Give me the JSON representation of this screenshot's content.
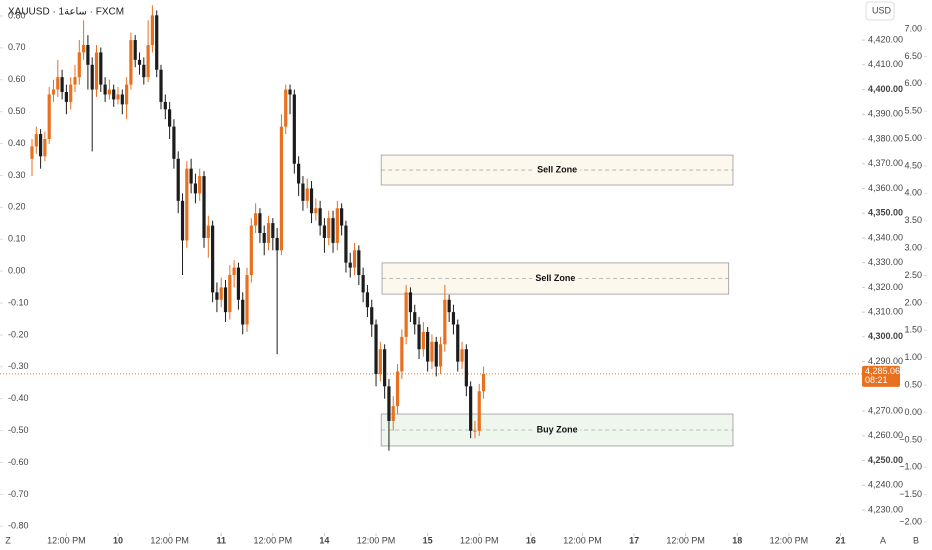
{
  "chart_data": {
    "type": "candlestick",
    "title": "XAUUSD · 1ساعة · FXCM",
    "y_unit": "USD",
    "up_color": "#e8701f",
    "down_color": "#1c1c1c",
    "grid": false,
    "x": [
      0,
      1,
      2,
      3,
      4,
      5,
      6,
      7,
      8,
      9,
      10,
      11,
      12,
      13,
      14,
      15,
      16,
      17,
      18,
      19,
      20,
      21,
      22,
      23,
      24,
      25,
      26,
      27,
      28,
      29,
      30,
      31,
      32,
      33,
      34,
      35,
      36,
      37,
      38,
      39,
      40,
      41,
      42,
      43,
      44,
      45,
      46,
      47,
      48,
      49,
      50,
      51,
      52,
      53,
      54,
      55,
      56,
      57,
      58,
      59,
      60,
      61,
      62,
      63,
      64,
      65,
      66,
      67,
      68,
      69,
      70,
      71,
      72,
      73,
      74,
      75,
      76,
      77,
      78,
      79,
      80,
      81,
      82,
      83,
      84,
      85,
      86,
      87,
      88,
      89,
      90,
      91,
      92,
      93,
      94,
      95,
      96,
      97,
      98,
      99,
      100,
      101,
      102,
      103,
      104,
      105
    ],
    "ohlc": [
      [
        4372,
        4380,
        4365,
        4377
      ],
      [
        4377,
        4385,
        4374,
        4382
      ],
      [
        4382,
        4384,
        4368,
        4373
      ],
      [
        4373,
        4383,
        4371,
        4380
      ],
      [
        4380,
        4401,
        4378,
        4398
      ],
      [
        4398,
        4404,
        4395,
        4400
      ],
      [
        4400,
        4412,
        4397,
        4405
      ],
      [
        4405,
        4408,
        4396,
        4399
      ],
      [
        4399,
        4402,
        4390,
        4395
      ],
      [
        4395,
        4405,
        4392,
        4402
      ],
      [
        4402,
        4410,
        4399,
        4405
      ],
      [
        4405,
        4420,
        4402,
        4415
      ],
      [
        4415,
        4428,
        4412,
        4418
      ],
      [
        4418,
        4422,
        4400,
        4410
      ],
      [
        4410,
        4413,
        4375,
        4400
      ],
      [
        4400,
        4418,
        4397,
        4415
      ],
      [
        4415,
        4417,
        4399,
        4402
      ],
      [
        4402,
        4405,
        4395,
        4398
      ],
      [
        4398,
        4404,
        4396,
        4400
      ],
      [
        4400,
        4402,
        4393,
        4396
      ],
      [
        4396,
        4401,
        4394,
        4398
      ],
      [
        4398,
        4400,
        4390,
        4394
      ],
      [
        4394,
        4405,
        4388,
        4402
      ],
      [
        4402,
        4423,
        4400,
        4420
      ],
      [
        4420,
        4422,
        4409,
        4412
      ],
      [
        4412,
        4415,
        4406,
        4410
      ],
      [
        4410,
        4413,
        4402,
        4405
      ],
      [
        4405,
        4428,
        4403,
        4418
      ],
      [
        4418,
        4434,
        4415,
        4430
      ],
      [
        4430,
        4432,
        4405,
        4408
      ],
      [
        4408,
        4410,
        4392,
        4395
      ],
      [
        4395,
        4398,
        4388,
        4392
      ],
      [
        4392,
        4395,
        4380,
        4385
      ],
      [
        4385,
        4388,
        4368,
        4372
      ],
      [
        4372,
        4375,
        4350,
        4355
      ],
      [
        4355,
        4358,
        4325,
        4339
      ],
      [
        4339,
        4371,
        4336,
        4368
      ],
      [
        4368,
        4372,
        4358,
        4362
      ],
      [
        4362,
        4366,
        4354,
        4358
      ],
      [
        4358,
        4368,
        4355,
        4365
      ],
      [
        4365,
        4367,
        4336,
        4340
      ],
      [
        4340,
        4349,
        4332,
        4345
      ],
      [
        4345,
        4347,
        4314,
        4318
      ],
      [
        4318,
        4322,
        4310,
        4315
      ],
      [
        4315,
        4324,
        4312,
        4320
      ],
      [
        4320,
        4323,
        4306,
        4310
      ],
      [
        4310,
        4329,
        4307,
        4325
      ],
      [
        4325,
        4331,
        4320,
        4328
      ],
      [
        4328,
        4330,
        4311,
        4315
      ],
      [
        4315,
        4318,
        4301,
        4305
      ],
      [
        4305,
        4328,
        4302,
        4325
      ],
      [
        4325,
        4348,
        4322,
        4345
      ],
      [
        4345,
        4354,
        4342,
        4350
      ],
      [
        4350,
        4352,
        4338,
        4342
      ],
      [
        4342,
        4345,
        4333,
        4338
      ],
      [
        4338,
        4349,
        4335,
        4346
      ],
      [
        4346,
        4348,
        4335,
        4340
      ],
      [
        4340,
        4344,
        4293,
        4335
      ],
      [
        4335,
        4390,
        4333,
        4385
      ],
      [
        4385,
        4402,
        4382,
        4400
      ],
      [
        4400,
        4402,
        4390,
        4398
      ],
      [
        4398,
        4400,
        4366,
        4370
      ],
      [
        4370,
        4373,
        4357,
        4362
      ],
      [
        4362,
        4365,
        4351,
        4355
      ],
      [
        4355,
        4364,
        4352,
        4360
      ],
      [
        4360,
        4363,
        4346,
        4350
      ],
      [
        4350,
        4356,
        4347,
        4352
      ],
      [
        4352,
        4355,
        4341,
        4345
      ],
      [
        4345,
        4348,
        4334,
        4340
      ],
      [
        4340,
        4351,
        4337,
        4348
      ],
      [
        4348,
        4351,
        4334,
        4338
      ],
      [
        4338,
        4355,
        4335,
        4352
      ],
      [
        4352,
        4354,
        4341,
        4345
      ],
      [
        4345,
        4347,
        4326,
        4330
      ],
      [
        4330,
        4334,
        4324,
        4328
      ],
      [
        4328,
        4338,
        4325,
        4335
      ],
      [
        4335,
        4337,
        4321,
        4325
      ],
      [
        4325,
        4328,
        4314,
        4318
      ],
      [
        4318,
        4321,
        4308,
        4312
      ],
      [
        4312,
        4315,
        4300,
        4305
      ],
      [
        4305,
        4307,
        4280,
        4285
      ],
      [
        4285,
        4298,
        4282,
        4295
      ],
      [
        4295,
        4297,
        4275,
        4280
      ],
      [
        4280,
        4283,
        4254,
        4266
      ],
      [
        4266,
        4276,
        4262,
        4272
      ],
      [
        4272,
        4289,
        4269,
        4286
      ],
      [
        4286,
        4303,
        4283,
        4300
      ],
      [
        4300,
        4321,
        4297,
        4318
      ],
      [
        4318,
        4320,
        4306,
        4310
      ],
      [
        4310,
        4313,
        4301,
        4305
      ],
      [
        4305,
        4308,
        4291,
        4295
      ],
      [
        4295,
        4306,
        4292,
        4302
      ],
      [
        4302,
        4304,
        4286,
        4290
      ],
      [
        4290,
        4301,
        4287,
        4298
      ],
      [
        4298,
        4300,
        4284,
        4288
      ],
      [
        4288,
        4300,
        4285,
        4297
      ],
      [
        4297,
        4321,
        4294,
        4315
      ],
      [
        4315,
        4317,
        4306,
        4310
      ],
      [
        4310,
        4313,
        4301,
        4305
      ],
      [
        4305,
        4307,
        4286,
        4290
      ],
      [
        4290,
        4298,
        4287,
        4295
      ],
      [
        4295,
        4297,
        4276,
        4280
      ],
      [
        4280,
        4282,
        4259,
        4262
      ],
      [
        4262,
        4266,
        4259,
        4262
      ],
      [
        4262,
        4281,
        4260,
        4278
      ],
      [
        4278,
        4288,
        4275,
        4285.06
      ]
    ],
    "xlim": [
      -7.44,
      193
    ],
    "xticks": [
      {
        "value": 8,
        "label": "12:00 PM"
      },
      {
        "value": 20,
        "label": "10"
      },
      {
        "value": 32,
        "label": "12:00 PM"
      },
      {
        "value": 44,
        "label": "11"
      },
      {
        "value": 56,
        "label": "12:00 PM"
      },
      {
        "value": 68,
        "label": "14"
      },
      {
        "value": 80,
        "label": "12:00 PM"
      },
      {
        "value": 92,
        "label": "15"
      },
      {
        "value": 104,
        "label": "12:00 PM"
      },
      {
        "value": 116,
        "label": "16"
      },
      {
        "value": 128,
        "label": "12:00 PM"
      },
      {
        "value": 140,
        "label": "17"
      },
      {
        "value": 152,
        "label": "12:00 PM"
      },
      {
        "value": 164,
        "label": "18"
      },
      {
        "value": 176,
        "label": "12:00 PM"
      },
      {
        "value": 188,
        "label": "21"
      }
    ],
    "ylim": [
      4220.7,
      4436.2
    ],
    "yticks": [
      {
        "value": 4230,
        "label": "4,230.00"
      },
      {
        "value": 4240,
        "label": "4,240.00"
      },
      {
        "value": 4250,
        "label": "4,250.00"
      },
      {
        "value": 4260,
        "label": "4,260.00"
      },
      {
        "value": 4270,
        "label": "4,270.00"
      },
      {
        "value": 4290,
        "label": "4,290.00"
      },
      {
        "value": 4300,
        "label": "4,300.00"
      },
      {
        "value": 4310,
        "label": "4,310.00"
      },
      {
        "value": 4320,
        "label": "4,320.00"
      },
      {
        "value": 4330,
        "label": "4,330.00"
      },
      {
        "value": 4340,
        "label": "4,340.00"
      },
      {
        "value": 4350,
        "label": "4,350.00"
      },
      {
        "value": 4360,
        "label": "4,360.00"
      },
      {
        "value": 4370,
        "label": "4,370.00"
      },
      {
        "value": 4380,
        "label": "4,380.00"
      },
      {
        "value": 4390,
        "label": "4,390.00"
      },
      {
        "value": 4400,
        "label": "4,400.00"
      },
      {
        "value": 4410,
        "label": "4,410.00"
      },
      {
        "value": 4420,
        "label": "4,420.00"
      }
    ],
    "left_axis": {
      "lim": [
        -0.821,
        0.85
      ],
      "ticks": [
        {
          "value": -0.8,
          "label": "-0.80"
        },
        {
          "value": -0.7,
          "label": "-0.70"
        },
        {
          "value": -0.6,
          "label": "-0.60"
        },
        {
          "value": -0.5,
          "label": "-0.50"
        },
        {
          "value": -0.4,
          "label": "-0.40"
        },
        {
          "value": -0.3,
          "label": "-0.30"
        },
        {
          "value": -0.2,
          "label": "-0.20"
        },
        {
          "value": -0.1,
          "label": "-0.10"
        },
        {
          "value": 0,
          "label": "0.00"
        },
        {
          "value": 0.1,
          "label": "0.10"
        },
        {
          "value": 0.2,
          "label": "0.20"
        },
        {
          "value": 0.3,
          "label": "0.30"
        },
        {
          "value": 0.4,
          "label": "0.40"
        },
        {
          "value": 0.5,
          "label": "0.50"
        },
        {
          "value": 0.6,
          "label": "0.60"
        },
        {
          "value": 0.7,
          "label": "0.70"
        },
        {
          "value": 0.8,
          "label": "0.80"
        }
      ]
    },
    "inner_axis": {
      "lim": [
        -2.2,
        7.53
      ],
      "ticks": [
        {
          "value": -2,
          "label": "−2.00"
        },
        {
          "value": -1.5,
          "label": "−1.50"
        },
        {
          "value": -1,
          "label": "−1.00"
        },
        {
          "value": -0.5,
          "label": "−0.50"
        },
        {
          "value": 0,
          "label": "0.00"
        },
        {
          "value": 0.5,
          "label": "0.50"
        },
        {
          "value": 1,
          "label": "1.00"
        },
        {
          "value": 1.5,
          "label": "1.50"
        },
        {
          "value": 2,
          "label": "2.00"
        },
        {
          "value": 2.5,
          "label": "2.50"
        },
        {
          "value": 3,
          "label": "3.00"
        },
        {
          "value": 3.5,
          "label": "3.50"
        },
        {
          "value": 4,
          "label": "4.00"
        },
        {
          "value": 4.5,
          "label": "4.50"
        },
        {
          "value": 5,
          "label": "5.00"
        },
        {
          "value": 5.5,
          "label": "5.50"
        },
        {
          "value": 6,
          "label": "6.00"
        },
        {
          "value": 6.5,
          "label": "6.50"
        },
        {
          "value": 7,
          "label": "7.00"
        }
      ]
    },
    "zones": [
      {
        "label": "Sell Zone",
        "top": 4373.5,
        "bottom": 4361.4,
        "x_start": 81.2,
        "x_end": 163,
        "fill": "#fdf8ee",
        "stroke": "#9a9a9a"
      },
      {
        "label": "Sell Zone",
        "top": 4329.9,
        "bottom": 4317.3,
        "x_start": 81.4,
        "x_end": 162,
        "fill": "#fdf8ee",
        "stroke": "#9a9a9a"
      },
      {
        "label": "Buy Zone",
        "top": 4268.8,
        "bottom": 4255.9,
        "x_start": 81.2,
        "x_end": 163,
        "fill": "#eef6ee",
        "stroke": "#9a9a9a"
      }
    ],
    "last_price": {
      "value": 4285.06,
      "label": "4,285.06",
      "countdown": "08:21",
      "color": "#e8701f"
    },
    "corner_labels": [
      "Z",
      "A",
      "B"
    ]
  }
}
